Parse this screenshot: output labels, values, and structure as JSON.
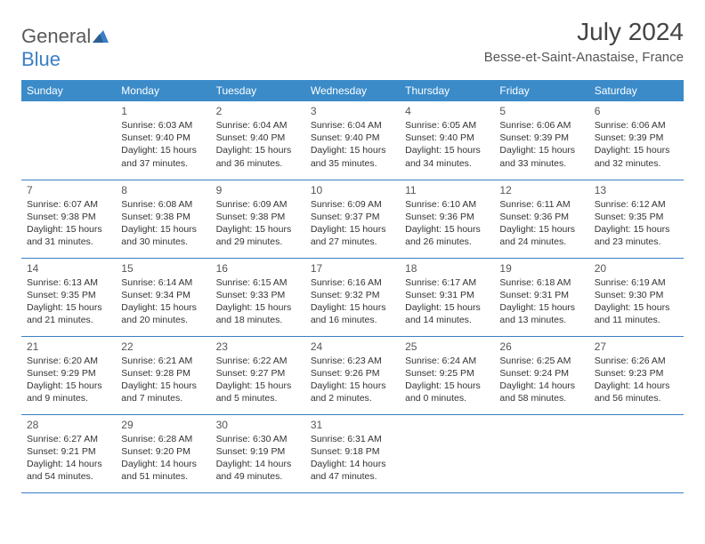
{
  "logo": {
    "text_gray": "General",
    "text_blue": "Blue"
  },
  "header": {
    "month_year": "July 2024",
    "location": "Besse-et-Saint-Anastaise, France"
  },
  "colors": {
    "header_bg": "#3b8bc9",
    "header_text": "#ffffff",
    "border": "#3b7fc4",
    "text": "#333333",
    "logo_gray": "#5a5a5a",
    "logo_blue": "#3b7fc4"
  },
  "day_headers": [
    "Sunday",
    "Monday",
    "Tuesday",
    "Wednesday",
    "Thursday",
    "Friday",
    "Saturday"
  ],
  "weeks": [
    [
      null,
      {
        "n": "1",
        "sr": "6:03 AM",
        "ss": "9:40 PM",
        "dl": "15 hours and 37 minutes."
      },
      {
        "n": "2",
        "sr": "6:04 AM",
        "ss": "9:40 PM",
        "dl": "15 hours and 36 minutes."
      },
      {
        "n": "3",
        "sr": "6:04 AM",
        "ss": "9:40 PM",
        "dl": "15 hours and 35 minutes."
      },
      {
        "n": "4",
        "sr": "6:05 AM",
        "ss": "9:40 PM",
        "dl": "15 hours and 34 minutes."
      },
      {
        "n": "5",
        "sr": "6:06 AM",
        "ss": "9:39 PM",
        "dl": "15 hours and 33 minutes."
      },
      {
        "n": "6",
        "sr": "6:06 AM",
        "ss": "9:39 PM",
        "dl": "15 hours and 32 minutes."
      }
    ],
    [
      {
        "n": "7",
        "sr": "6:07 AM",
        "ss": "9:38 PM",
        "dl": "15 hours and 31 minutes."
      },
      {
        "n": "8",
        "sr": "6:08 AM",
        "ss": "9:38 PM",
        "dl": "15 hours and 30 minutes."
      },
      {
        "n": "9",
        "sr": "6:09 AM",
        "ss": "9:38 PM",
        "dl": "15 hours and 29 minutes."
      },
      {
        "n": "10",
        "sr": "6:09 AM",
        "ss": "9:37 PM",
        "dl": "15 hours and 27 minutes."
      },
      {
        "n": "11",
        "sr": "6:10 AM",
        "ss": "9:36 PM",
        "dl": "15 hours and 26 minutes."
      },
      {
        "n": "12",
        "sr": "6:11 AM",
        "ss": "9:36 PM",
        "dl": "15 hours and 24 minutes."
      },
      {
        "n": "13",
        "sr": "6:12 AM",
        "ss": "9:35 PM",
        "dl": "15 hours and 23 minutes."
      }
    ],
    [
      {
        "n": "14",
        "sr": "6:13 AM",
        "ss": "9:35 PM",
        "dl": "15 hours and 21 minutes."
      },
      {
        "n": "15",
        "sr": "6:14 AM",
        "ss": "9:34 PM",
        "dl": "15 hours and 20 minutes."
      },
      {
        "n": "16",
        "sr": "6:15 AM",
        "ss": "9:33 PM",
        "dl": "15 hours and 18 minutes."
      },
      {
        "n": "17",
        "sr": "6:16 AM",
        "ss": "9:32 PM",
        "dl": "15 hours and 16 minutes."
      },
      {
        "n": "18",
        "sr": "6:17 AM",
        "ss": "9:31 PM",
        "dl": "15 hours and 14 minutes."
      },
      {
        "n": "19",
        "sr": "6:18 AM",
        "ss": "9:31 PM",
        "dl": "15 hours and 13 minutes."
      },
      {
        "n": "20",
        "sr": "6:19 AM",
        "ss": "9:30 PM",
        "dl": "15 hours and 11 minutes."
      }
    ],
    [
      {
        "n": "21",
        "sr": "6:20 AM",
        "ss": "9:29 PM",
        "dl": "15 hours and 9 minutes."
      },
      {
        "n": "22",
        "sr": "6:21 AM",
        "ss": "9:28 PM",
        "dl": "15 hours and 7 minutes."
      },
      {
        "n": "23",
        "sr": "6:22 AM",
        "ss": "9:27 PM",
        "dl": "15 hours and 5 minutes."
      },
      {
        "n": "24",
        "sr": "6:23 AM",
        "ss": "9:26 PM",
        "dl": "15 hours and 2 minutes."
      },
      {
        "n": "25",
        "sr": "6:24 AM",
        "ss": "9:25 PM",
        "dl": "15 hours and 0 minutes."
      },
      {
        "n": "26",
        "sr": "6:25 AM",
        "ss": "9:24 PM",
        "dl": "14 hours and 58 minutes."
      },
      {
        "n": "27",
        "sr": "6:26 AM",
        "ss": "9:23 PM",
        "dl": "14 hours and 56 minutes."
      }
    ],
    [
      {
        "n": "28",
        "sr": "6:27 AM",
        "ss": "9:21 PM",
        "dl": "14 hours and 54 minutes."
      },
      {
        "n": "29",
        "sr": "6:28 AM",
        "ss": "9:20 PM",
        "dl": "14 hours and 51 minutes."
      },
      {
        "n": "30",
        "sr": "6:30 AM",
        "ss": "9:19 PM",
        "dl": "14 hours and 49 minutes."
      },
      {
        "n": "31",
        "sr": "6:31 AM",
        "ss": "9:18 PM",
        "dl": "14 hours and 47 minutes."
      },
      null,
      null,
      null
    ]
  ],
  "labels": {
    "sunrise": "Sunrise:",
    "sunset": "Sunset:",
    "daylight": "Daylight:"
  }
}
